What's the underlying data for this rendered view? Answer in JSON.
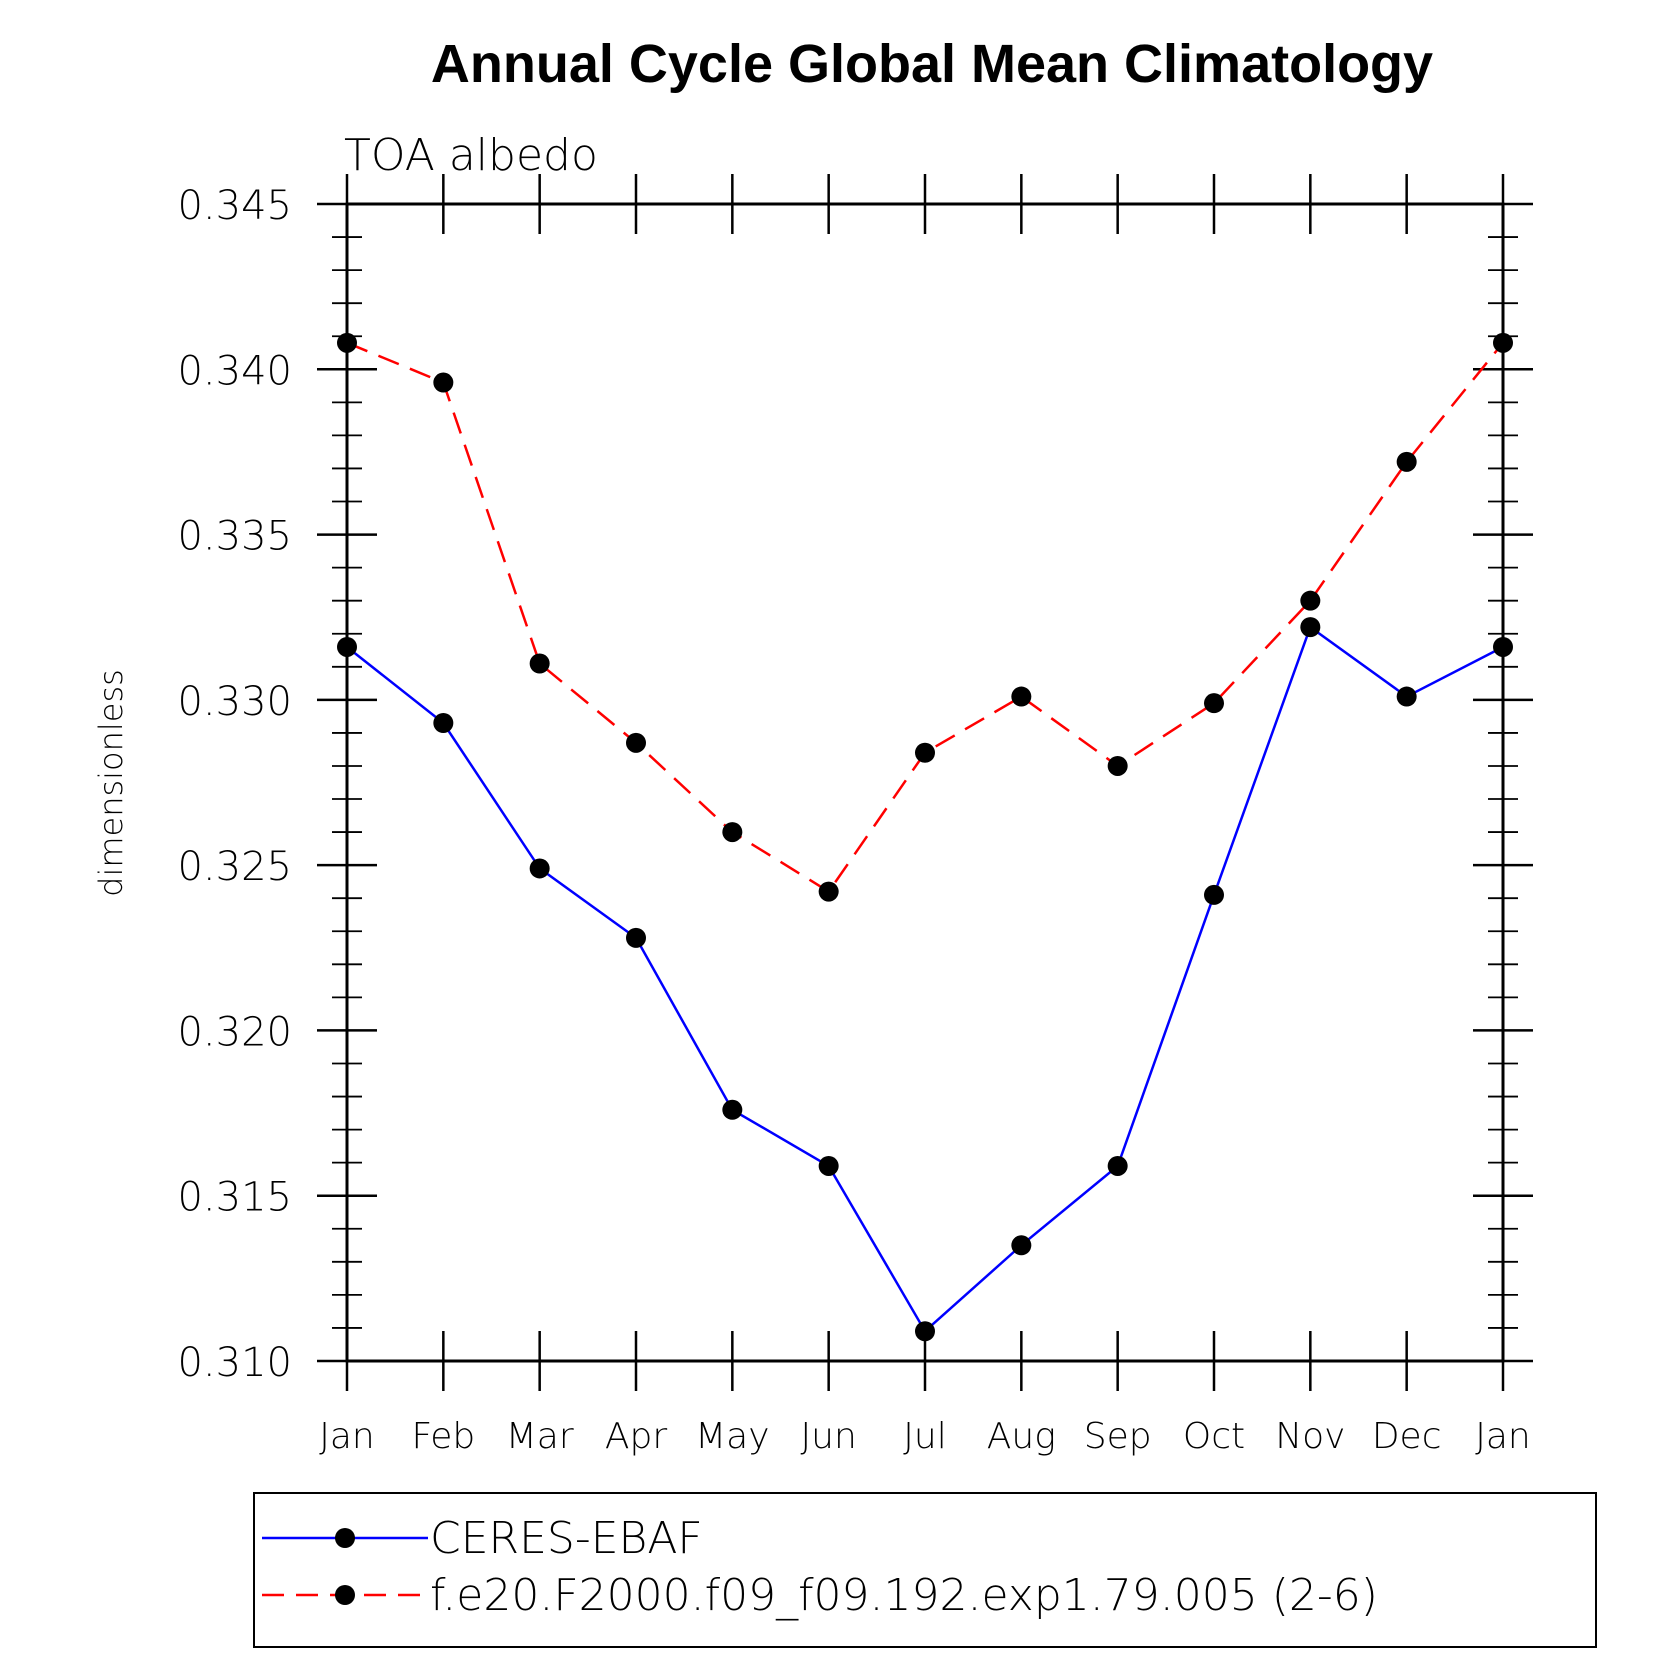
{
  "chart_data": {
    "type": "line",
    "title": "Annual Cycle Global Mean Climatology",
    "subtitle": "TOA albedo",
    "xlabel": "",
    "ylabel": "dimensionless",
    "categories": [
      "Jan",
      "Feb",
      "Mar",
      "Apr",
      "May",
      "Jun",
      "Jul",
      "Aug",
      "Sep",
      "Oct",
      "Nov",
      "Dec",
      "Jan"
    ],
    "ylim": [
      0.31,
      0.345
    ],
    "yticks": [
      "0.310",
      "0.315",
      "0.320",
      "0.325",
      "0.330",
      "0.335",
      "0.340",
      "0.345"
    ],
    "legend_position": "bottom",
    "series": [
      {
        "name": "CERES-EBAF",
        "color": "#0000ff",
        "style": "solid",
        "marker": "circle",
        "values": [
          0.3316,
          0.3293,
          0.3249,
          0.3228,
          0.3176,
          0.3159,
          0.3109,
          0.3135,
          0.3159,
          0.3241,
          0.3322,
          0.3301,
          0.3316
        ]
      },
      {
        "name": "f.e20.F2000.f09_f09.192.exp1.79.005 (2-6)",
        "color": "#ff0000",
        "style": "dashed",
        "marker": "circle",
        "values": [
          0.3408,
          0.3396,
          0.3311,
          0.3287,
          0.326,
          0.3242,
          0.3284,
          0.3301,
          0.328,
          0.3299,
          0.333,
          0.3372,
          0.3408
        ]
      }
    ]
  }
}
